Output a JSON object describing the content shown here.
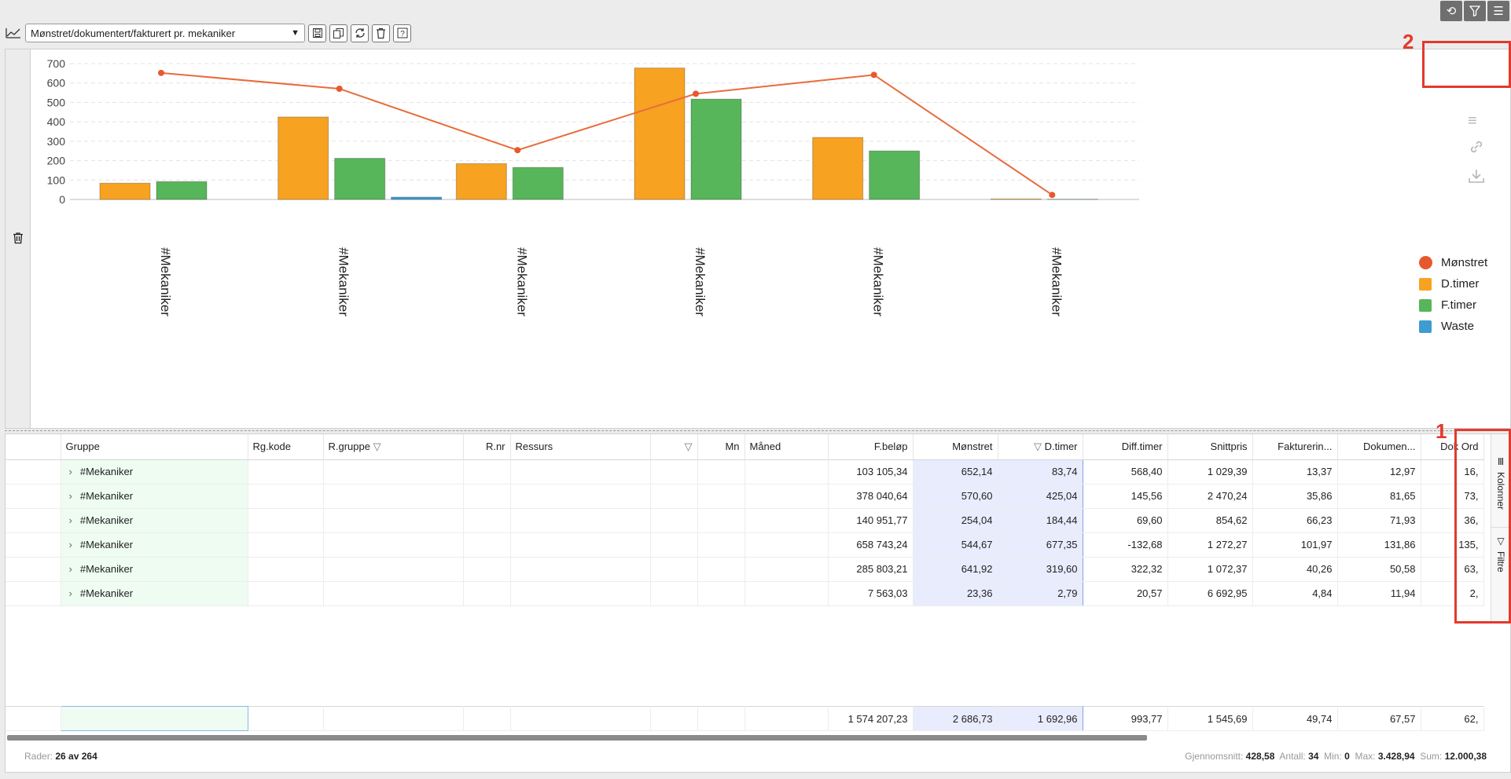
{
  "toolbar": {
    "report_select": "Mønstret/dokumentert/fakturert pr. mekaniker"
  },
  "icons": {
    "refresh": "refresh-icon",
    "filter": "filter-icon",
    "menu": "hamburger-icon",
    "chart": "line-chart-icon",
    "save": "save-icon",
    "copy": "copy-icon",
    "reload": "reload-icon",
    "delete": "trash-icon",
    "help": "help-icon"
  },
  "annotations": {
    "n1": "1",
    "n2": "2"
  },
  "colors": {
    "orange": "#f7a221",
    "green": "#57b55a",
    "blue": "#3d9dd0",
    "line": "#e86c3b",
    "annotation": "#e23a2c"
  },
  "chart_data": {
    "type": "bar",
    "categories": [
      "#Mekaniker",
      "#Mekaniker",
      "#Mekaniker",
      "#Mekaniker",
      "#Mekaniker",
      "#Mekaniker"
    ],
    "series": [
      {
        "name": "Mønstret",
        "type": "line",
        "values": [
          652.14,
          570.6,
          254.04,
          544.67,
          641.92,
          23.36
        ]
      },
      {
        "name": "D.timer",
        "type": "bar",
        "values": [
          83.74,
          425.04,
          184.44,
          677.35,
          319.6,
          2.79
        ]
      },
      {
        "name": "F.timer",
        "type": "bar",
        "values": [
          92,
          212,
          165,
          517,
          250,
          1
        ]
      },
      {
        "name": "Waste",
        "type": "bar",
        "values": [
          0,
          12,
          0,
          0,
          0,
          0
        ]
      }
    ],
    "ylim": [
      0,
      700
    ],
    "yticks": [
      "0",
      "100",
      "200",
      "300",
      "400",
      "500",
      "600",
      "700"
    ],
    "grid": true,
    "legend": "right"
  },
  "grid": {
    "headers": [
      "",
      "Gruppe",
      "Rg.kode",
      "R.gruppe",
      "R.nr",
      "Ressurs",
      "",
      "Mn",
      "Måned",
      "F.beløp",
      "Mønstret",
      "D.timer",
      "Diff.timer",
      "Snittpris",
      "Fakturerin...",
      "Dokumen...",
      "Dok Ord"
    ],
    "rows": [
      [
        "#Mekaniker",
        "103 105,34",
        "652,14",
        "83,74",
        "568,40",
        "1 029,39",
        "13,37",
        "12,97",
        "16,"
      ],
      [
        "#Mekaniker",
        "378 040,64",
        "570,60",
        "425,04",
        "145,56",
        "2 470,24",
        "35,86",
        "81,65",
        "73,"
      ],
      [
        "#Mekaniker",
        "140 951,77",
        "254,04",
        "184,44",
        "69,60",
        "854,62",
        "66,23",
        "71,93",
        "36,"
      ],
      [
        "#Mekaniker",
        "658 743,24",
        "544,67",
        "677,35",
        "-132,68",
        "1 272,27",
        "101,97",
        "131,86",
        "135,"
      ],
      [
        "#Mekaniker",
        "285 803,21",
        "641,92",
        "319,60",
        "322,32",
        "1 072,37",
        "40,26",
        "50,58",
        "63,"
      ],
      [
        "#Mekaniker",
        "7 563,03",
        "23,36",
        "2,79",
        "20,57",
        "6 692,95",
        "4,84",
        "11,94",
        "2,"
      ]
    ],
    "totals": [
      "1 574 207,23",
      "2 686,73",
      "1 692,96",
      "993,77",
      "1 545,69",
      "49,74",
      "67,57",
      "62,"
    ],
    "side_tabs": [
      "Kolonner",
      "Filtre"
    ]
  },
  "status": {
    "rows_label": "Rader:",
    "rows_value": "26 av 264",
    "avg_label": "Gjennomsnitt:",
    "avg_value": "428,58",
    "count_label": "Antall:",
    "count_value": "34",
    "min_label": "Min:",
    "min_value": "0",
    "max_label": "Max:",
    "max_value": "3.428,94",
    "sum_label": "Sum:",
    "sum_value": "12.000,38"
  }
}
